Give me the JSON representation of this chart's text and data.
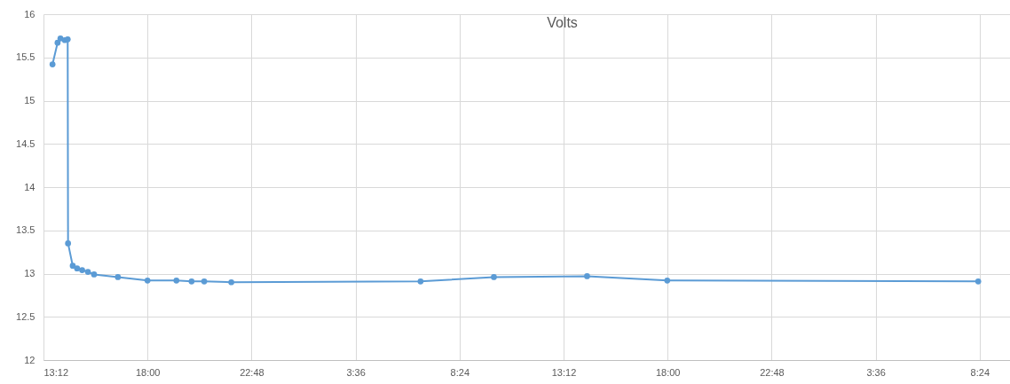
{
  "chart_data": {
    "type": "line",
    "title": "Volts",
    "x": [
      "2000-01-01T13:37",
      "2000-01-01T13:51",
      "2000-01-01T13:59",
      "2000-01-01T14:11",
      "2000-01-01T14:19",
      "2000-01-01T14:20",
      "2000-01-01T14:33",
      "2000-01-01T14:45",
      "2000-01-01T14:59",
      "2000-01-01T15:15",
      "2000-01-01T15:32",
      "2000-01-01T16:38",
      "2000-01-01T18:00",
      "2000-01-01T19:20",
      "2000-01-01T20:02",
      "2000-01-01T20:37",
      "2000-01-01T21:52",
      "2000-01-02T06:36",
      "2000-01-02T09:59",
      "2000-01-02T14:17",
      "2000-01-02T17:59",
      "2000-01-03T08:20"
    ],
    "series": [
      {
        "color": "#5b9bd5",
        "values": [
          15.42,
          15.67,
          15.72,
          15.7,
          15.71,
          13.35,
          13.09,
          13.06,
          13.04,
          13.02,
          12.99,
          12.96,
          12.92,
          12.92,
          12.91,
          12.91,
          12.9,
          12.91,
          12.96,
          12.97,
          12.92,
          12.91
        ]
      }
    ],
    "xlim": [
      "2000-01-01T13:12",
      "2000-01-03T09:48"
    ],
    "xticks": [
      {
        "value": "2000-01-01T13:12",
        "label": "13:12"
      },
      {
        "value": "2000-01-01T18:00",
        "label": "18:00"
      },
      {
        "value": "2000-01-01T22:48",
        "label": "22:48"
      },
      {
        "value": "2000-01-02T03:36",
        "label": "3:36"
      },
      {
        "value": "2000-01-02T08:24",
        "label": "8:24"
      },
      {
        "value": "2000-01-02T13:12",
        "label": "13:12"
      },
      {
        "value": "2000-01-02T18:00",
        "label": "18:00"
      },
      {
        "value": "2000-01-02T22:48",
        "label": "22:48"
      },
      {
        "value": "2000-01-03T03:36",
        "label": "3:36"
      },
      {
        "value": "2000-01-03T08:24",
        "label": "8:24"
      }
    ],
    "ylim": [
      12,
      16
    ],
    "yticks": [
      12,
      12.5,
      13,
      13.5,
      14,
      14.5,
      15,
      15.5,
      16
    ],
    "grid": true,
    "marker": "circle"
  }
}
